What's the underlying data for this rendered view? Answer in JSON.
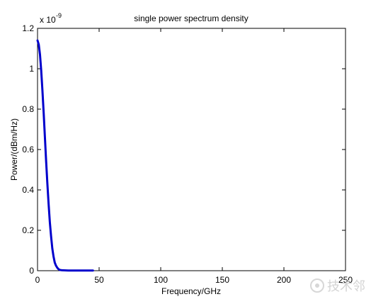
{
  "chart_data": {
    "type": "line",
    "title": "single power spectrum density",
    "xlabel": "Frequency/GHz",
    "ylabel": "Power/(dBm/Hz)",
    "y_multiplier_label": "x 10",
    "y_multiplier_exponent": "-9",
    "xlim": [
      0,
      250
    ],
    "ylim": [
      0,
      1.2
    ],
    "x_ticks": [
      0,
      50,
      100,
      150,
      200,
      250
    ],
    "y_ticks": [
      0,
      0.2,
      0.4,
      0.6,
      0.8,
      1,
      1.2
    ],
    "x_tick_labels": [
      "0",
      "50",
      "100",
      "150",
      "200",
      "250"
    ],
    "y_tick_labels": [
      "0",
      "0.2",
      "0.4",
      "0.6",
      "0.8",
      "1",
      "1.2"
    ],
    "grid": false,
    "legend": "none",
    "series": [
      {
        "color": "#0000cc",
        "x": [
          0,
          1,
          2,
          3,
          4,
          5,
          6,
          7,
          8,
          9,
          10,
          11,
          12,
          13,
          14,
          15,
          16,
          17,
          18,
          20,
          25,
          30,
          35,
          40,
          45
        ],
        "y": [
          1.14,
          1.12,
          1.07,
          0.99,
          0.89,
          0.78,
          0.66,
          0.54,
          0.43,
          0.33,
          0.24,
          0.17,
          0.11,
          0.07,
          0.04,
          0.025,
          0.015,
          0.008,
          0.004,
          0.002,
          0.001,
          0.001,
          0.001,
          0.001,
          0.001
        ]
      }
    ]
  },
  "watermark": {
    "text": "技术邻",
    "icon": "robot-face-icon",
    "color": "#d7d7d7"
  }
}
